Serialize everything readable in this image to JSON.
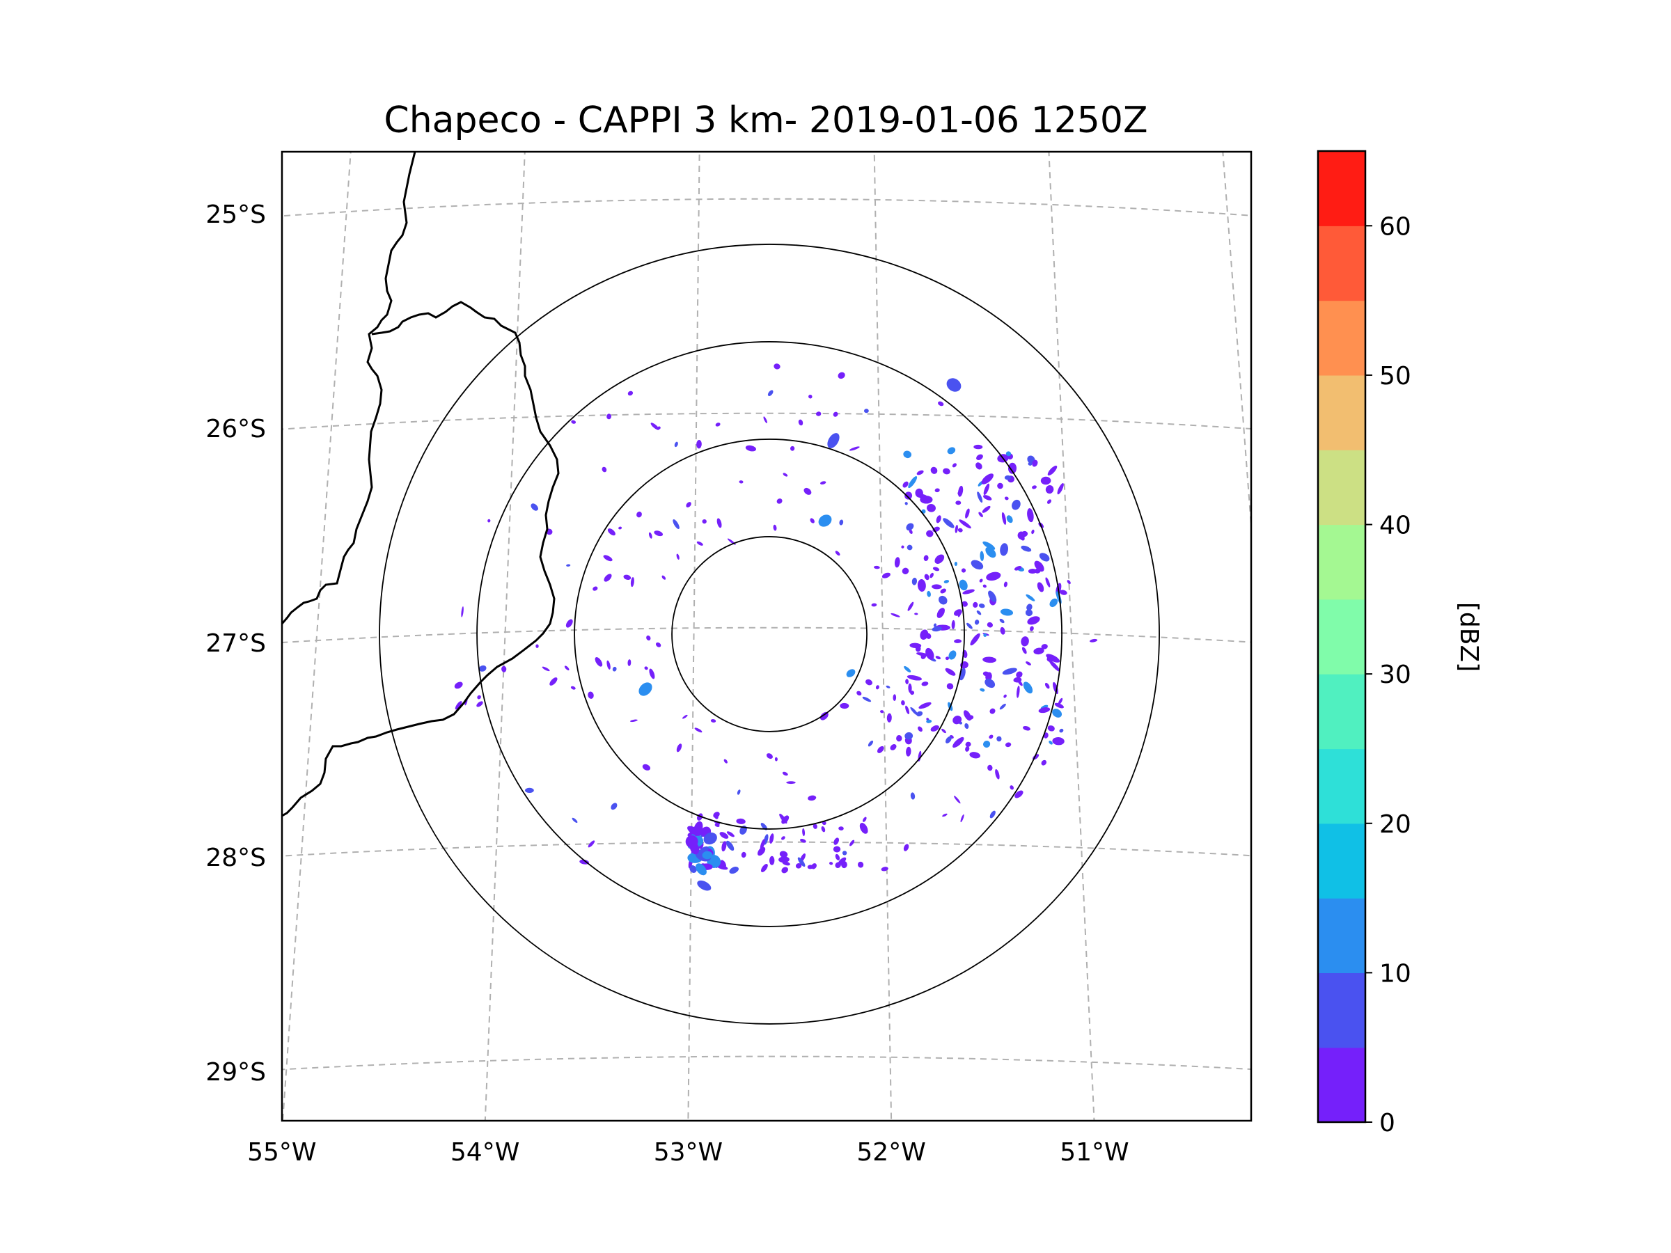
{
  "title": "Chapeco - CAPPI 3 km- 2019-01-06 1250Z",
  "map": {
    "lon_range": [
      -55.18,
      -50.05
    ],
    "lat_range": [
      -29.3,
      -24.78
    ],
    "lat_ticks": [
      {
        "value": -25,
        "label": "25°S"
      },
      {
        "value": -26,
        "label": "26°S"
      },
      {
        "value": -27,
        "label": "27°S"
      },
      {
        "value": -28,
        "label": "28°S"
      },
      {
        "value": -29,
        "label": "29°S"
      }
    ],
    "lon_ticks": [
      {
        "value": -55,
        "label": "55°W"
      },
      {
        "value": -54,
        "label": "54°W"
      },
      {
        "value": -53,
        "label": "53°W"
      },
      {
        "value": -52,
        "label": "52°W"
      },
      {
        "value": -51,
        "label": "51°W"
      }
    ],
    "radar_center": {
      "lon": -52.6,
      "lat": -27.03
    },
    "range_rings_count": 4,
    "gridlines": "dashed",
    "echo_colors": [
      "#7520fa",
      "#4a52f0",
      "#2b8ef0"
    ]
  },
  "colorbar": {
    "label": "[dBZ]",
    "min": 0,
    "max": 65,
    "step": 5,
    "ticks": [
      {
        "value": 0,
        "label": "0"
      },
      {
        "value": 10,
        "label": "10"
      },
      {
        "value": 20,
        "label": "20"
      },
      {
        "value": 30,
        "label": "30"
      },
      {
        "value": 40,
        "label": "40"
      },
      {
        "value": 50,
        "label": "50"
      },
      {
        "value": 60,
        "label": "60"
      }
    ],
    "colors": [
      "#7520fa",
      "#4a52f0",
      "#2b8ef0",
      "#10c0e6",
      "#2ee0d8",
      "#50f0c0",
      "#80fcaa",
      "#a4f892",
      "#cce084",
      "#f2be70",
      "#ff9050",
      "#ff5a38",
      "#ff1c14"
    ]
  }
}
